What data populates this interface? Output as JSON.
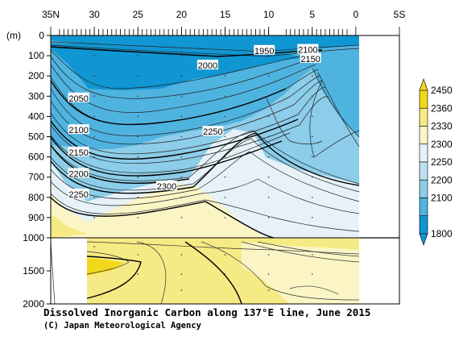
{
  "chart_data": {
    "type": "contour-section",
    "title": "Dissolved Inorganic Carbon along 137°E line, June 2015",
    "credit": "(C) Japan Meteorological Agency",
    "x_ticks": [
      "35N",
      "30",
      "25",
      "20",
      "15",
      "10",
      "5",
      "0",
      "5S"
    ],
    "y_unit": "(m)",
    "y_ticks_upper": [
      "0",
      "100",
      "200",
      "300",
      "400",
      "500",
      "600",
      "700",
      "800",
      "900",
      "1000"
    ],
    "y_ticks_lower": [
      "1500",
      "2000"
    ],
    "colorbar": {
      "levels": [
        "2450",
        "2360",
        "2330",
        "2300",
        "2250",
        "2200",
        "2100",
        "1800"
      ],
      "colors": [
        "#f2d81c",
        "#f6ea84",
        "#fbf5c6",
        "#e6f2f8",
        "#bddff2",
        "#8ccde9",
        "#4fb3df",
        "#1096d2"
      ]
    },
    "contour_labels": [
      {
        "text": "1950",
        "lat": 10.5,
        "depth": 75
      },
      {
        "text": "2100",
        "lat": 5.5,
        "depth": 70
      },
      {
        "text": "2150",
        "lat": 5.2,
        "depth": 115
      },
      {
        "text": "2000",
        "lat": 17,
        "depth": 148
      },
      {
        "text": "2050",
        "lat": 31.8,
        "depth": 310
      },
      {
        "text": "2100",
        "lat": 31.8,
        "depth": 467
      },
      {
        "text": "2150",
        "lat": 31.8,
        "depth": 577
      },
      {
        "text": "2200",
        "lat": 31.8,
        "depth": 683
      },
      {
        "text": "2250",
        "lat": 31.8,
        "depth": 785
      },
      {
        "text": "2250",
        "lat": 16.4,
        "depth": 475
      },
      {
        "text": "2300",
        "lat": 21.7,
        "depth": 745
      }
    ]
  }
}
